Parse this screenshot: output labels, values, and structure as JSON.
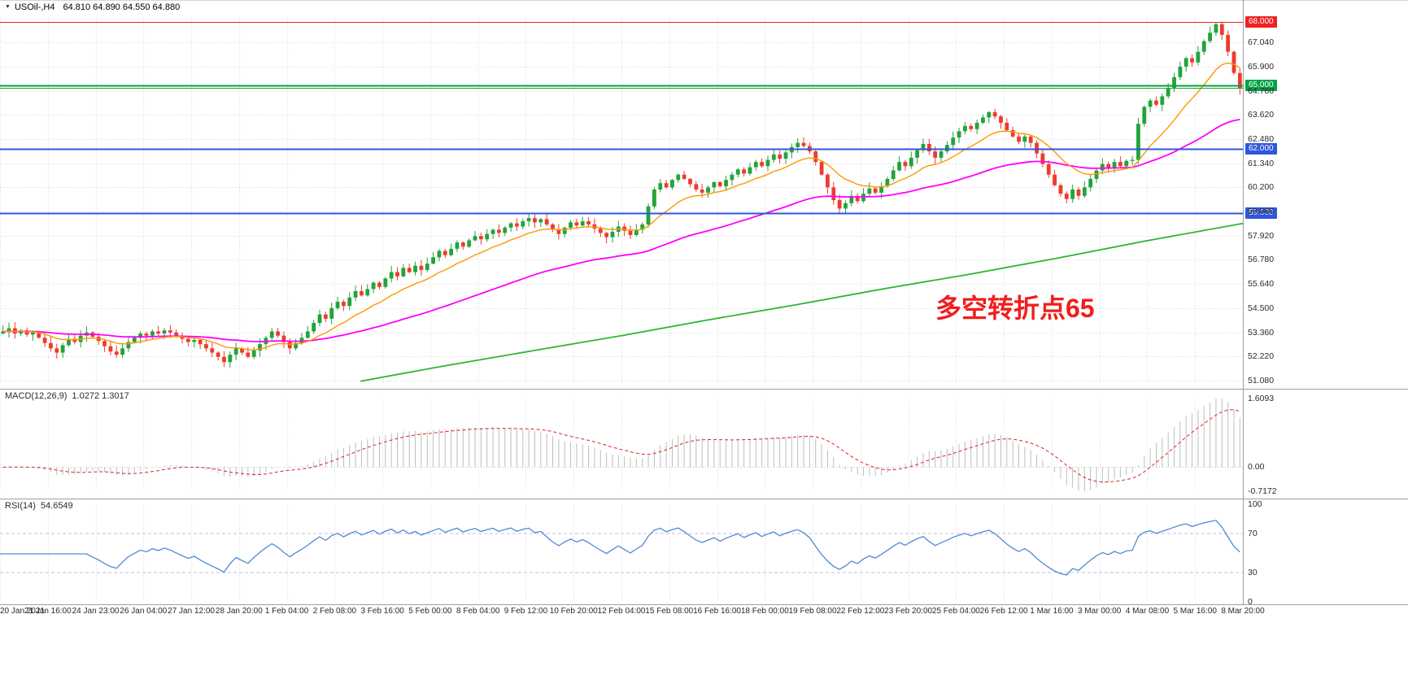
{
  "header": {
    "symbol": "USOil-,H4",
    "ohlc": "64.810 64.890 64.550 64.880"
  },
  "chart_data": [
    {
      "type": "candlestick",
      "title": "USOil- H4",
      "ohlc_display": {
        "open": "64.810",
        "high": "64.890",
        "low": "64.550",
        "close": "64.880"
      },
      "y_axis": {
        "min": 51.0,
        "max": 68.2,
        "grid_step": 1.14,
        "tick_labels": [
          "67.040",
          "65.900",
          "64.760",
          "63.620",
          "62.480",
          "61.340",
          "60.200",
          "59.060",
          "57.920",
          "56.780",
          "55.640",
          "54.500",
          "53.360",
          "52.220",
          "51.080"
        ]
      },
      "x_tick_labels": [
        "20 Jan 2021",
        "21 Jan 16:00",
        "24 Jan 23:00",
        "26 Jan 04:00",
        "27 Jan 12:00",
        "28 Jan 20:00",
        "1 Feb 04:00",
        "2 Feb 08:00",
        "3 Feb 16:00",
        "5 Feb 00:00",
        "8 Feb 04:00",
        "9 Feb 12:00",
        "10 Feb 20:00",
        "12 Feb 04:00",
        "15 Feb 08:00",
        "16 Feb 16:00",
        "18 Feb 00:00",
        "19 Feb 08:00",
        "22 Feb 12:00",
        "23 Feb 20:00",
        "25 Feb 04:00",
        "26 Feb 12:00",
        "1 Mar 16:00",
        "3 Mar 00:00",
        "4 Mar 08:00",
        "5 Mar 16:00",
        "8 Mar 20:00"
      ],
      "first_open": 53.3,
      "closes": [
        53.4,
        53.55,
        53.3,
        53.45,
        53.25,
        53.35,
        53.1,
        52.85,
        52.6,
        52.4,
        52.75,
        53.05,
        52.9,
        53.2,
        53.35,
        53.15,
        52.95,
        52.7,
        52.45,
        52.3,
        52.6,
        52.9,
        53.1,
        53.3,
        53.2,
        53.4,
        53.3,
        53.45,
        53.35,
        53.2,
        53.05,
        52.9,
        53.0,
        52.8,
        52.6,
        52.4,
        52.2,
        51.95,
        52.3,
        52.6,
        52.4,
        52.2,
        52.5,
        52.8,
        53.1,
        53.4,
        53.2,
        52.9,
        52.6,
        52.85,
        53.1,
        53.4,
        53.8,
        54.2,
        54.0,
        54.5,
        54.8,
        54.6,
        55.0,
        55.3,
        55.1,
        55.4,
        55.7,
        55.5,
        55.9,
        56.2,
        56.0,
        56.4,
        56.2,
        56.5,
        56.3,
        56.6,
        56.9,
        57.2,
        57.0,
        57.3,
        57.6,
        57.4,
        57.7,
        57.9,
        57.75,
        58.0,
        58.2,
        58.05,
        58.3,
        58.5,
        58.35,
        58.6,
        58.75,
        58.55,
        58.7,
        58.45,
        58.2,
        58.0,
        58.3,
        58.55,
        58.4,
        58.6,
        58.45,
        58.25,
        58.05,
        57.85,
        58.1,
        58.35,
        58.15,
        57.95,
        58.2,
        58.45,
        59.3,
        60.1,
        60.4,
        60.2,
        60.55,
        60.8,
        60.6,
        60.35,
        60.1,
        59.95,
        60.2,
        60.45,
        60.25,
        60.55,
        60.8,
        61.05,
        60.85,
        61.15,
        61.4,
        61.2,
        61.5,
        61.75,
        61.55,
        61.85,
        62.1,
        62.3,
        62.15,
        61.9,
        61.4,
        60.8,
        60.2,
        59.6,
        59.2,
        59.45,
        59.8,
        59.55,
        59.9,
        60.15,
        59.95,
        60.25,
        60.6,
        61.0,
        61.4,
        61.2,
        61.6,
        61.95,
        62.25,
        61.9,
        61.6,
        61.9,
        62.2,
        62.55,
        62.85,
        63.1,
        62.95,
        63.25,
        63.5,
        63.75,
        63.55,
        63.25,
        62.9,
        62.6,
        62.35,
        62.6,
        62.3,
        61.8,
        61.3,
        60.8,
        60.3,
        59.9,
        59.65,
        60.1,
        59.8,
        60.2,
        60.6,
        61.0,
        61.3,
        61.1,
        61.4,
        61.2,
        61.45,
        61.5,
        63.2,
        64.0,
        64.3,
        64.1,
        64.5,
        64.9,
        65.4,
        65.9,
        66.3,
        66.1,
        66.6,
        67.1,
        67.5,
        67.9,
        67.4,
        66.6,
        65.6,
        64.88
      ],
      "hlines": [
        {
          "price": 68.0,
          "label": "68.000",
          "color": "#ee2222",
          "width": 1
        },
        {
          "price": 65.0,
          "label": "65.000",
          "color": "#00a345",
          "width": 2
        },
        {
          "price": 64.88,
          "label": "",
          "color": "#2aa32a",
          "width": 1
        },
        {
          "price": 62.0,
          "label": "62.000",
          "color": "#3056dd",
          "width": 2
        },
        {
          "price": 59.0,
          "label": "59.000",
          "color": "#3056dd",
          "width": 2
        }
      ],
      "ma_colors": {
        "fast": "#ff9800",
        "medium": "#ff00ff",
        "slow": "#2eb52e"
      },
      "ma_periods": {
        "fast": 13,
        "medium": 55
      },
      "ma_slow_points": [
        [
          0.29,
          51.05
        ],
        [
          0.36,
          51.8
        ],
        [
          0.43,
          52.5
        ],
        [
          0.5,
          53.2
        ],
        [
          0.57,
          53.95
        ],
        [
          0.64,
          54.65
        ],
        [
          0.71,
          55.4
        ],
        [
          0.78,
          56.1
        ],
        [
          0.85,
          56.85
        ],
        [
          0.92,
          57.65
        ],
        [
          1.0,
          58.5
        ]
      ],
      "candle_colors": {
        "up": "#23a33a",
        "down": "#ee3b2e"
      },
      "annotation": {
        "text": "多空转折点65",
        "color": "#f21d1d"
      }
    },
    {
      "type": "bar",
      "title": "MACD(12,26,9)",
      "values_label": "1.0272 1.3017",
      "params": {
        "fast": 12,
        "slow": 26,
        "signal": 9
      },
      "y_tick_labels": [
        "1.6093",
        "0.00",
        "-0.7172"
      ],
      "ylim": [
        -0.7172,
        1.6093
      ],
      "histogram_color": "#bdbdbd",
      "signal_color": "#e02020",
      "signal_style": "dashed"
    },
    {
      "type": "line",
      "title": "RSI(14)",
      "value_label": "54.6549",
      "period": 14,
      "levels": [
        70,
        30
      ],
      "y_tick_labels": [
        "100",
        "70",
        "30",
        "0"
      ],
      "ylim": [
        0,
        100
      ],
      "line_color": "#4e8ad4",
      "level_color": "#b9c2e0"
    }
  ]
}
